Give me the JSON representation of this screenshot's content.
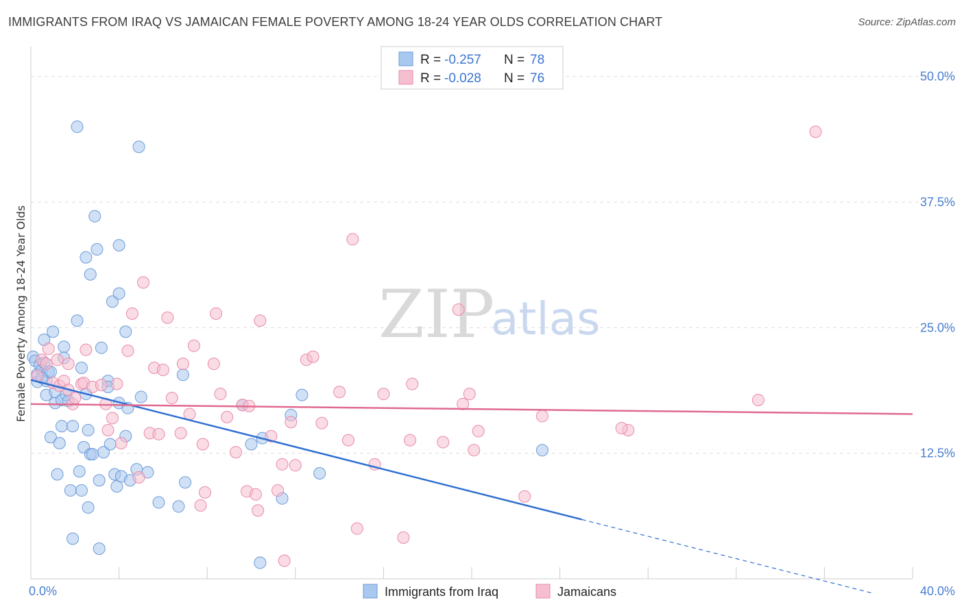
{
  "title": "IMMIGRANTS FROM IRAQ VS JAMAICAN FEMALE POVERTY AMONG 18-24 YEAR OLDS CORRELATION CHART",
  "source": "Source: ZipAtlas.com",
  "watermark": {
    "zip": "ZIP",
    "atlas": "atlas"
  },
  "colors": {
    "blue_fill": "#a9c8ef",
    "blue_stroke": "#6c9ad9",
    "blue_line": "#2f6fd1",
    "pink_fill": "#f6bfd0",
    "pink_stroke": "#e88aa9",
    "pink_line": "#e0698f",
    "tick": "#4a7fd0",
    "grid": "#dddddd"
  },
  "legend": {
    "r_label": "R =",
    "n_label": "N =",
    "items": [
      {
        "r": "-0.257",
        "n": "78",
        "color": "blue"
      },
      {
        "r": "-0.028",
        "n": "76",
        "color": "pink"
      }
    ]
  },
  "chart_data": {
    "type": "scatter",
    "xlabel": "",
    "ylabel": "Female Poverty Among 18-24 Year Olds",
    "xlim": [
      0,
      40
    ],
    "ylim": [
      0,
      50
    ],
    "x_tick_labels": [
      "0.0%",
      "40.0%"
    ],
    "y_ticks": [
      12.5,
      25.0,
      37.5,
      50.0
    ],
    "y_tick_labels": [
      "12.5%",
      "25.0%",
      "37.5%",
      "50.0%"
    ],
    "grid": true,
    "legend_position": "top-center",
    "series": [
      {
        "name": "Immigrants from Iraq",
        "color": "blue",
        "trend": {
          "x0": 0,
          "y0": 19.8,
          "x1": 25,
          "y1": 5.9,
          "dashed_to_x": 38.2
        },
        "points": [
          [
            0.1,
            22.1
          ],
          [
            0.2,
            21.7
          ],
          [
            0.3,
            20.4
          ],
          [
            0.3,
            19.6
          ],
          [
            0.4,
            21.3
          ],
          [
            0.5,
            20.8
          ],
          [
            0.6,
            23.8
          ],
          [
            0.6,
            21.5
          ],
          [
            0.7,
            19.7
          ],
          [
            0.7,
            18.3
          ],
          [
            0.8,
            20.6
          ],
          [
            0.9,
            20.6
          ],
          [
            0.9,
            14.1
          ],
          [
            1.0,
            24.6
          ],
          [
            1.1,
            17.5
          ],
          [
            1.1,
            18.6
          ],
          [
            1.2,
            10.4
          ],
          [
            1.3,
            13.5
          ],
          [
            1.4,
            15.2
          ],
          [
            1.4,
            17.8
          ],
          [
            1.5,
            23.1
          ],
          [
            1.5,
            22.0
          ],
          [
            1.6,
            18.3
          ],
          [
            1.7,
            17.7
          ],
          [
            1.8,
            8.8
          ],
          [
            1.9,
            15.2
          ],
          [
            1.9,
            4.0
          ],
          [
            2.1,
            45.0
          ],
          [
            2.1,
            25.7
          ],
          [
            2.2,
            10.7
          ],
          [
            2.3,
            21.0
          ],
          [
            2.3,
            8.8
          ],
          [
            2.4,
            13.1
          ],
          [
            2.5,
            32.0
          ],
          [
            2.5,
            18.4
          ],
          [
            2.6,
            7.1
          ],
          [
            2.6,
            14.8
          ],
          [
            2.7,
            12.4
          ],
          [
            2.7,
            30.3
          ],
          [
            2.8,
            12.4
          ],
          [
            2.9,
            36.1
          ],
          [
            3.0,
            32.8
          ],
          [
            3.1,
            9.8
          ],
          [
            3.1,
            3.0
          ],
          [
            3.2,
            23.0
          ],
          [
            3.3,
            12.6
          ],
          [
            3.5,
            19.7
          ],
          [
            3.5,
            19.1
          ],
          [
            3.6,
            13.4
          ],
          [
            3.7,
            27.6
          ],
          [
            3.8,
            10.4
          ],
          [
            3.9,
            9.2
          ],
          [
            4.0,
            17.5
          ],
          [
            4.0,
            33.2
          ],
          [
            4.0,
            28.4
          ],
          [
            4.1,
            10.2
          ],
          [
            4.3,
            24.6
          ],
          [
            4.3,
            14.2
          ],
          [
            4.4,
            17.0
          ],
          [
            4.5,
            9.8
          ],
          [
            4.8,
            10.9
          ],
          [
            4.9,
            43.0
          ],
          [
            5.0,
            18.1
          ],
          [
            5.3,
            10.6
          ],
          [
            5.8,
            7.6
          ],
          [
            6.7,
            7.2
          ],
          [
            6.9,
            20.3
          ],
          [
            7.0,
            9.6
          ],
          [
            9.6,
            17.3
          ],
          [
            10.0,
            13.4
          ],
          [
            10.4,
            1.6
          ],
          [
            10.5,
            14.0
          ],
          [
            11.4,
            8.0
          ],
          [
            11.8,
            16.3
          ],
          [
            12.3,
            18.3
          ],
          [
            13.1,
            10.5
          ],
          [
            23.2,
            12.8
          ],
          [
            0.5,
            20.0
          ]
        ]
      },
      {
        "name": "Jamaicans",
        "color": "pink",
        "trend": {
          "x0": 0,
          "y0": 17.4,
          "x1": 40,
          "y1": 16.4
        },
        "points": [
          [
            0.3,
            20.2
          ],
          [
            0.5,
            21.8
          ],
          [
            0.7,
            21.4
          ],
          [
            0.8,
            22.9
          ],
          [
            1.0,
            19.5
          ],
          [
            1.2,
            21.8
          ],
          [
            1.3,
            19.2
          ],
          [
            1.5,
            19.7
          ],
          [
            1.7,
            18.8
          ],
          [
            1.7,
            21.4
          ],
          [
            1.9,
            17.4
          ],
          [
            2.0,
            18.0
          ],
          [
            2.3,
            19.4
          ],
          [
            2.4,
            19.5
          ],
          [
            2.5,
            22.8
          ],
          [
            2.8,
            19.1
          ],
          [
            3.2,
            19.3
          ],
          [
            3.4,
            17.4
          ],
          [
            3.5,
            14.8
          ],
          [
            3.7,
            16.0
          ],
          [
            3.9,
            19.4
          ],
          [
            4.1,
            13.5
          ],
          [
            4.4,
            22.7
          ],
          [
            4.6,
            26.4
          ],
          [
            4.9,
            10.1
          ],
          [
            5.1,
            29.5
          ],
          [
            5.4,
            14.5
          ],
          [
            5.6,
            21.0
          ],
          [
            5.8,
            14.4
          ],
          [
            6.0,
            20.8
          ],
          [
            6.2,
            26.0
          ],
          [
            6.4,
            18.0
          ],
          [
            6.8,
            14.5
          ],
          [
            6.9,
            21.4
          ],
          [
            7.2,
            16.4
          ],
          [
            7.4,
            23.2
          ],
          [
            7.7,
            7.3
          ],
          [
            7.8,
            13.4
          ],
          [
            7.9,
            8.6
          ],
          [
            8.3,
            21.4
          ],
          [
            8.4,
            26.4
          ],
          [
            8.6,
            18.4
          ],
          [
            8.9,
            16.1
          ],
          [
            9.3,
            12.6
          ],
          [
            9.6,
            17.3
          ],
          [
            9.8,
            8.7
          ],
          [
            9.9,
            17.2
          ],
          [
            10.2,
            8.4
          ],
          [
            10.3,
            6.8
          ],
          [
            10.4,
            25.7
          ],
          [
            10.9,
            14.2
          ],
          [
            11.2,
            8.8
          ],
          [
            11.4,
            11.4
          ],
          [
            11.5,
            1.8
          ],
          [
            11.8,
            15.6
          ],
          [
            12.0,
            11.3
          ],
          [
            12.5,
            21.8
          ],
          [
            12.8,
            22.1
          ],
          [
            13.2,
            15.5
          ],
          [
            14.0,
            18.6
          ],
          [
            14.4,
            13.8
          ],
          [
            14.6,
            33.8
          ],
          [
            14.8,
            5.0
          ],
          [
            15.6,
            11.4
          ],
          [
            16.0,
            18.4
          ],
          [
            16.9,
            4.1
          ],
          [
            17.2,
            13.8
          ],
          [
            17.3,
            19.4
          ],
          [
            18.7,
            13.6
          ],
          [
            19.4,
            26.8
          ],
          [
            19.6,
            17.4
          ],
          [
            19.9,
            18.4
          ],
          [
            20.1,
            12.8
          ],
          [
            20.3,
            14.7
          ],
          [
            22.4,
            8.2
          ],
          [
            23.2,
            16.2
          ]
        ]
      }
    ],
    "extra_points_pink": [
      [
        27.1,
        14.8
      ],
      [
        26.8,
        15.0
      ],
      [
        33.0,
        17.8
      ],
      [
        35.6,
        44.5
      ]
    ]
  }
}
